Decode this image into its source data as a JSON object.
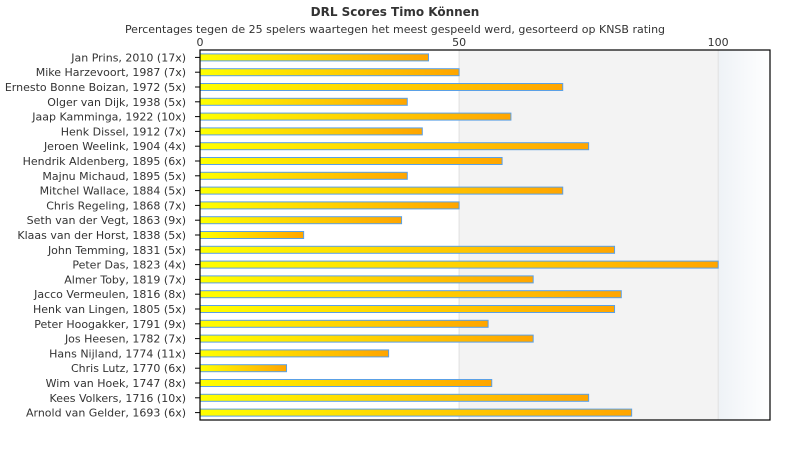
{
  "chart_data": {
    "type": "bar",
    "orientation": "horizontal",
    "title": "DRL Scores Timo Können",
    "subtitle": "Percentages tegen de 25 spelers waartegen het meest gespeeld werd, gesorteerd op KNSB rating",
    "xlim": [
      0,
      110
    ],
    "xticks": [
      0,
      50,
      100
    ],
    "categories": [
      "Jan Prins, 2010 (17x)",
      "Mike Harzevoort, 1987 (7x)",
      "Ernesto Bonne Boizan, 1972 (5x)",
      "Olger van Dijk, 1938 (5x)",
      "Jaap Kamminga, 1922 (10x)",
      "Henk Dissel, 1912 (7x)",
      "Jeroen Weelink, 1904 (4x)",
      "Hendrik Aldenberg, 1895 (6x)",
      "Majnu Michaud, 1895 (5x)",
      "Mitchel Wallace, 1884 (5x)",
      "Chris Regeling, 1868 (7x)",
      "Seth van der Vegt, 1863 (9x)",
      "Klaas van der Horst, 1838 (5x)",
      "John Temming, 1831 (5x)",
      "Peter Das, 1823 (4x)",
      "Almer Toby, 1819 (7x)",
      "Jacco Vermeulen, 1816 (8x)",
      "Henk van Lingen, 1805 (5x)",
      "Peter Hoogakker, 1791 (9x)",
      "Jos Heesen, 1782 (7x)",
      "Hans Nijland, 1774 (11x)",
      "Chris Lutz, 1770 (6x)",
      "Wim van Hoek, 1747 (8x)",
      "Kees Volkers, 1716 (10x)",
      "Arnold van Gelder, 1693 (6x)"
    ],
    "values": [
      44.1,
      50,
      70,
      40,
      60,
      42.9,
      75,
      58.3,
      40,
      70,
      50,
      38.9,
      20,
      80,
      100,
      64.3,
      81.3,
      80,
      55.6,
      64.3,
      36.4,
      16.7,
      56.3,
      75,
      83.3
    ],
    "colors": {
      "bar_start": "#ffff00",
      "bar_end": "#ffa500",
      "bar_border": "#5aa0e6",
      "band": "#f3f3f3"
    }
  }
}
